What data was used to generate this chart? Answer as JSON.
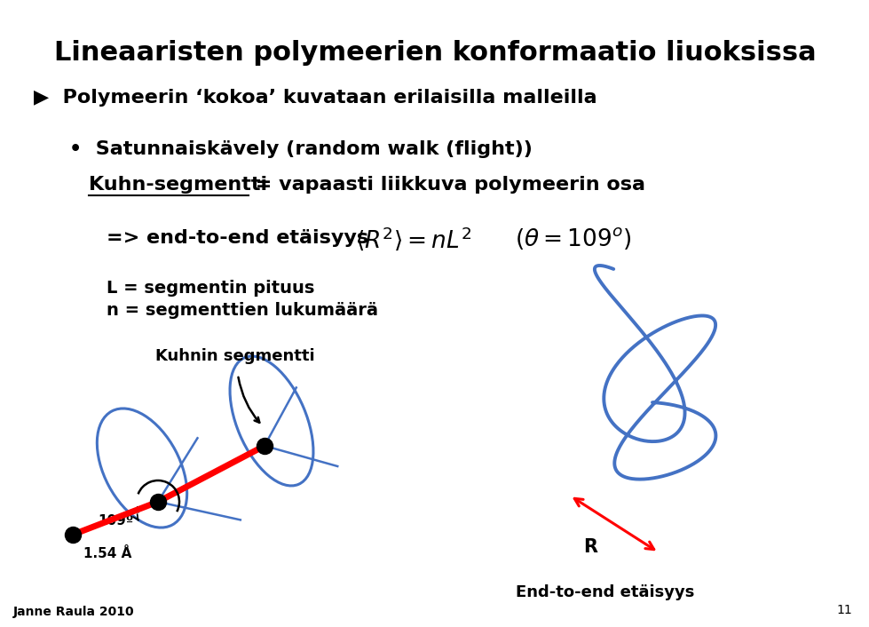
{
  "title": "Lineaaristen polymeerien konformaatio liuoksissa",
  "bullet1": "▶  Polymeerin ‘kokoa’ kuvataan erilaisilla malleilla",
  "bullet2_line1": "Satunnaiskävely (random walk (flight))",
  "kuhn_underlined": "Kuhn-segmentti",
  "kuhn_rest": " = vapaasti liikkuva polymeerin osa",
  "line3": "=> end-to-end etäisyys",
  "line4": "L = segmentin pituus",
  "line5": "n = segmenttien lukumäärä",
  "label_kuhnin": "Kuhnin segmentti",
  "label_109": "109º",
  "label_154": "1.54 Å",
  "label_R": "R",
  "label_end": "End-to-end etäisyys",
  "label_janne": "Janne Raula 2010",
  "label_page": "11",
  "bg_color": "#ffffff",
  "text_color": "#000000",
  "blue_color": "#4472C4",
  "red_color": "#FF0000"
}
